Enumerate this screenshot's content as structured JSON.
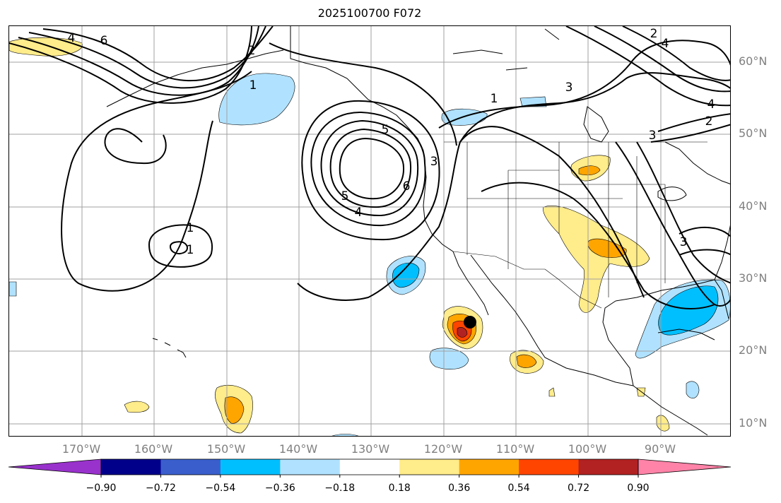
{
  "title": "2025100700 F072",
  "lat_labels": [
    "60°N",
    "50°N",
    "40°N",
    "30°N",
    "20°N",
    "10°N"
  ],
  "lon_labels": [
    "170°W",
    "160°W",
    "150°W",
    "140°W",
    "130°W",
    "120°W",
    "110°W",
    "100°W",
    "90°W"
  ],
  "contour_labels": [
    "6",
    "4",
    "1",
    "2",
    "1",
    "1",
    "6",
    "5",
    "4",
    "5",
    "3",
    "3",
    "4",
    "3",
    "1",
    "3",
    "2",
    "4",
    "2"
  ],
  "marker": {
    "name": "storm-center-marker",
    "color": "#000000"
  },
  "colorbar": {
    "tick_labels": [
      "−0.90",
      "−0.72",
      "−0.54",
      "−0.36",
      "−0.18",
      "0.18",
      "0.36",
      "0.54",
      "0.72",
      "0.90"
    ],
    "colors": [
      "#9932cc",
      "#00008b",
      "#3a5fcd",
      "#00bfff",
      "#b0e2ff",
      "#ffffff",
      "#ffec8b",
      "#ffa500",
      "#ff4500",
      "#b22222",
      "#ff83a8"
    ]
  },
  "fill_colors": {
    "neg_light": "#b0e2ff",
    "neg_mid": "#00bfff",
    "pos_light": "#ffec8b",
    "pos_mid": "#ffa500",
    "pos_strong": "#ff4500",
    "pos_max": "#b22222"
  }
}
